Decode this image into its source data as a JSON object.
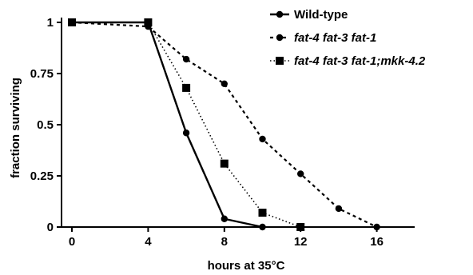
{
  "chart_data": {
    "type": "line",
    "xlabel": "hours at 35°C",
    "ylabel": "fraction surviving",
    "xlim": [
      0,
      18
    ],
    "ylim": [
      0,
      1
    ],
    "x_ticks": [
      0,
      4,
      8,
      12,
      16
    ],
    "y_ticks": [
      0,
      0.25,
      0.5,
      0.75,
      1
    ],
    "y_tick_labels": [
      "0",
      "0.25",
      "0.5",
      "0.75",
      "1"
    ],
    "grid": false,
    "legend_position": "top-right",
    "series": [
      {
        "name": "Wild-type",
        "marker": "circle",
        "line": "solid",
        "italic": false,
        "x": [
          0,
          4,
          6,
          8,
          10
        ],
        "y": [
          1.0,
          1.0,
          0.46,
          0.04,
          0.0
        ]
      },
      {
        "name": "fat-4 fat-3 fat-1",
        "marker": "circle",
        "line": "dashed",
        "italic": true,
        "x": [
          0,
          4,
          6,
          8,
          10,
          12,
          14,
          16
        ],
        "y": [
          1.0,
          0.98,
          0.82,
          0.7,
          0.43,
          0.26,
          0.09,
          0.0
        ]
      },
      {
        "name": "fat-4 fat-3 fat-1;mkk-4.2",
        "marker": "square",
        "line": "dotted",
        "italic": true,
        "x": [
          0,
          4,
          6,
          8,
          10,
          12
        ],
        "y": [
          1.0,
          1.0,
          0.68,
          0.31,
          0.07,
          0.0
        ]
      }
    ]
  }
}
